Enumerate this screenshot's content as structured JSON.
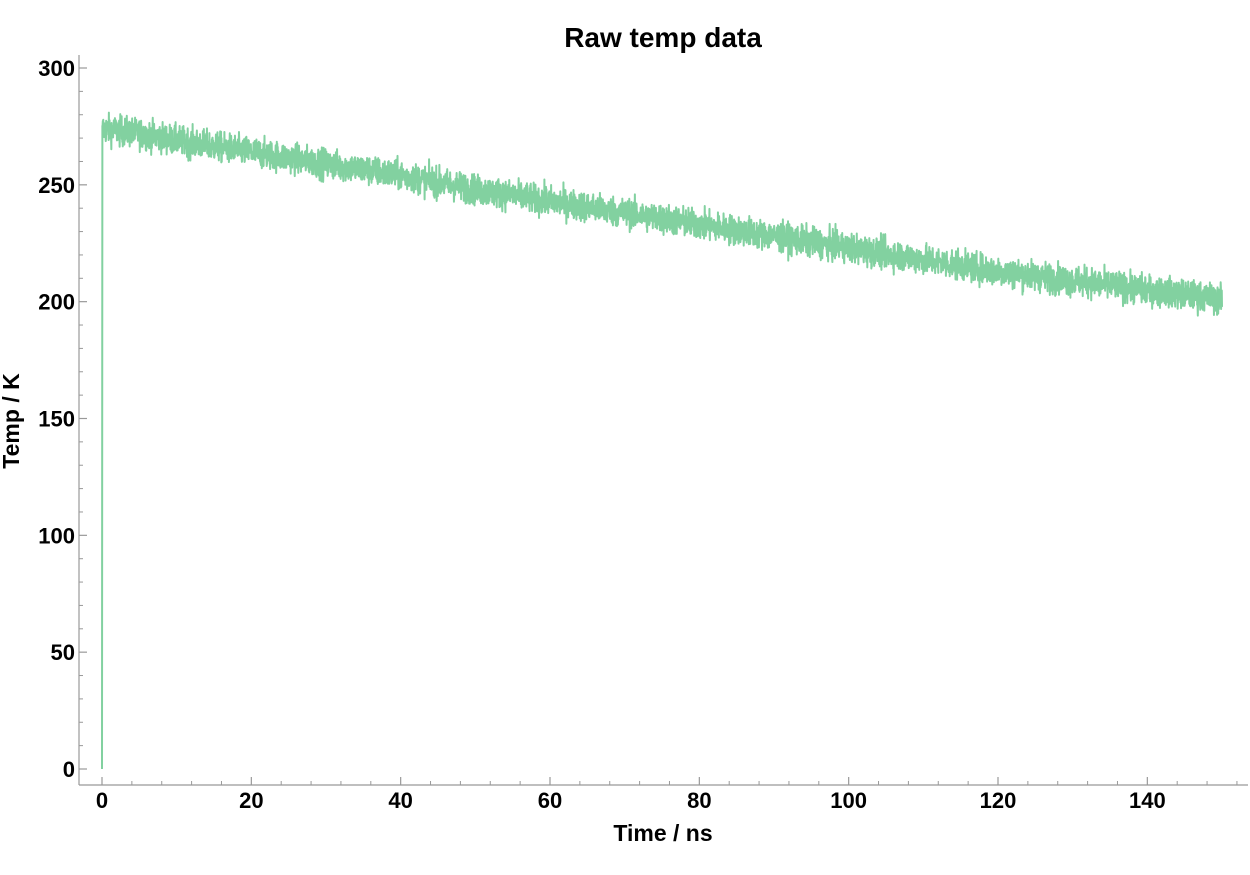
{
  "chart_data": {
    "type": "line",
    "title": "Raw temp data",
    "xlabel": "Time / ns",
    "ylabel": "Temp / K",
    "xlim": [
      0,
      150
    ],
    "ylim": [
      0,
      300
    ],
    "x_ticks": [
      "0",
      "20",
      "40",
      "60",
      "80",
      "100",
      "120",
      "140"
    ],
    "y_ticks": [
      "0",
      "50",
      "100",
      "150",
      "200",
      "250",
      "300"
    ],
    "grid": false,
    "legend": "none",
    "series": [
      {
        "color": "#82d1a0",
        "x": [
          0,
          0.05,
          0.1,
          5,
          10,
          20,
          30,
          40,
          50,
          60,
          70,
          80,
          90,
          100,
          110,
          120,
          130,
          140,
          150
        ],
        "y": [
          0,
          272,
          274,
          272,
          269,
          264,
          259,
          254,
          248,
          243,
          238,
          233,
          228,
          223,
          218,
          213,
          209,
          205,
          201
        ],
        "noise_amplitude": 8
      }
    ]
  }
}
